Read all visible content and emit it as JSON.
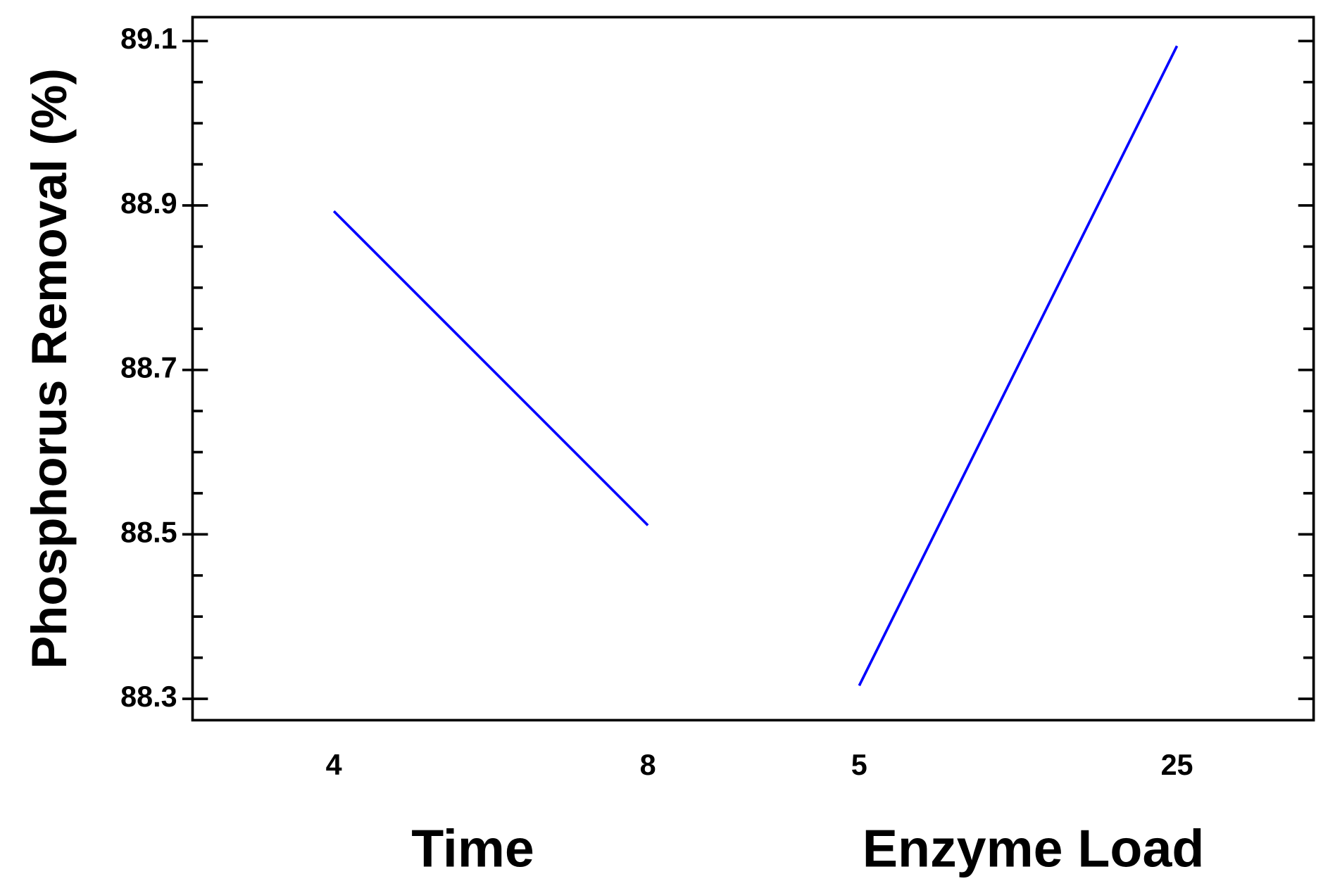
{
  "chart_data": {
    "type": "line",
    "ylabel": "Phosphorus Removal (%)",
    "ylim": [
      88.274,
      89.129
    ],
    "yticks": [
      88.3,
      88.5,
      88.7,
      88.9,
      89.1
    ],
    "minor_yticks": [
      88.35,
      88.4,
      88.45,
      88.55,
      88.6,
      88.65,
      88.75,
      88.8,
      88.85,
      88.95,
      89.0,
      89.05
    ],
    "color": "#0000ff",
    "panels": [
      {
        "xlabel": "Time",
        "x": [
          4,
          8
        ],
        "values": [
          88.893,
          88.511
        ],
        "xlim": [
          2.2,
          9.34
        ],
        "xticks": [
          4,
          8
        ]
      },
      {
        "xlabel": "Enzyme Load",
        "x": [
          5,
          25
        ],
        "values": [
          88.316,
          89.094
        ],
        "xlim": [
          -1.68,
          33.6
        ],
        "xticks": [
          5,
          25
        ]
      }
    ]
  }
}
